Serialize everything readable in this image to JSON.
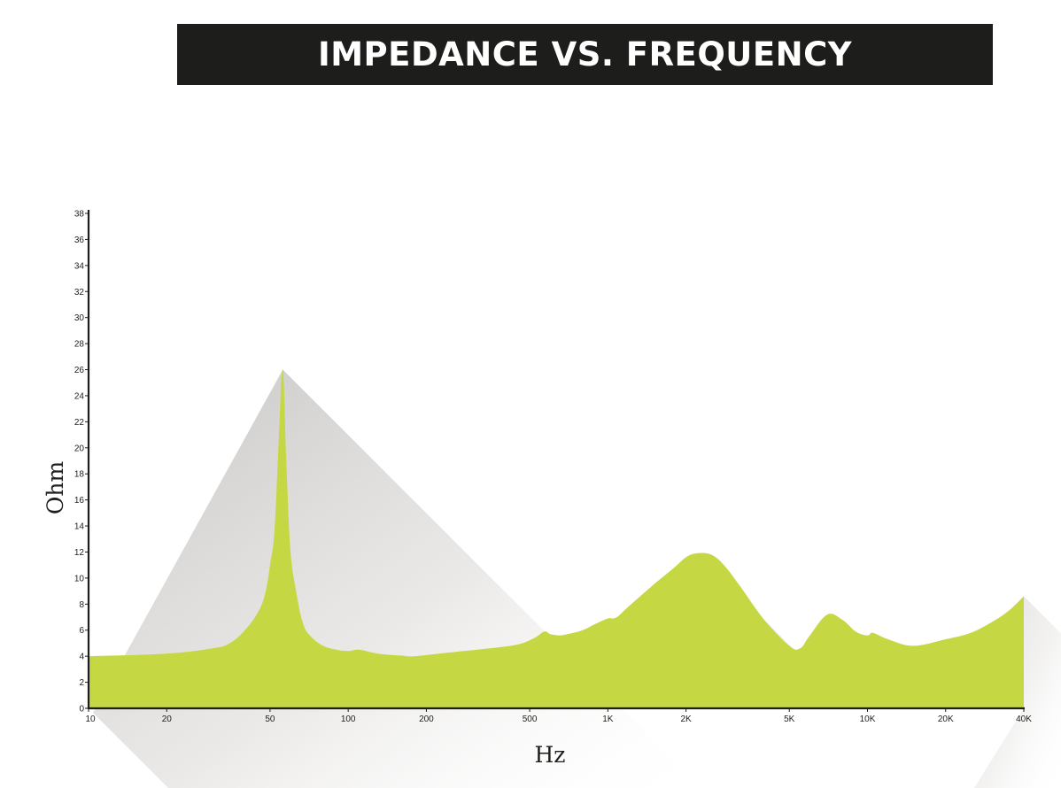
{
  "chart_data": {
    "type": "area",
    "title": "IMPEDANCE VS. FREQUENCY",
    "xlabel": "Hz",
    "ylabel": "Ohm",
    "x_scale": "log",
    "xlim": [
      10,
      40000
    ],
    "ylim": [
      0,
      38
    ],
    "x_ticks": [
      10,
      20,
      50,
      100,
      200,
      500,
      1000,
      2000,
      5000,
      10000,
      20000,
      40000
    ],
    "x_tick_labels": [
      "10",
      "20",
      "50",
      "100",
      "200",
      "500",
      "1K",
      "2K",
      "5K",
      "10K",
      "20K",
      "40K"
    ],
    "y_ticks": [
      0,
      2,
      4,
      6,
      8,
      10,
      12,
      14,
      16,
      18,
      20,
      22,
      24,
      26,
      28,
      30,
      32,
      34,
      36,
      38
    ],
    "grid": false,
    "colors": {
      "fill": "#c5d844",
      "axis": "#1d1d1b",
      "shadow": "#c8c6c4"
    },
    "series": [
      {
        "x": [
          10,
          20,
          30,
          35,
          40,
          45,
          48,
          50,
          52,
          54,
          56,
          58,
          60,
          63,
          67,
          72,
          80,
          90,
          100,
          110,
          130,
          160,
          180,
          250,
          350,
          450,
          520,
          570,
          600,
          650,
          700,
          800,
          900,
          1000,
          1050,
          1100,
          1200,
          1500,
          1800,
          2000,
          2200,
          2500,
          2800,
          3200,
          4000,
          5000,
          5500,
          6000,
          7000,
          8000,
          9000,
          10000,
          10500,
          12000,
          15000,
          20000,
          25000,
          30000,
          35000,
          40000
        ],
        "y": [
          4.0,
          4.2,
          4.6,
          5.0,
          6.0,
          7.4,
          8.9,
          11.0,
          13.6,
          20.5,
          26.0,
          18.0,
          12.0,
          9.0,
          6.5,
          5.5,
          4.8,
          4.5,
          4.4,
          4.5,
          4.2,
          4.05,
          4.0,
          4.3,
          4.6,
          4.9,
          5.4,
          5.9,
          5.7,
          5.6,
          5.7,
          6.0,
          6.5,
          6.9,
          6.9,
          7.1,
          7.8,
          9.5,
          10.8,
          11.6,
          11.9,
          11.8,
          11.0,
          9.5,
          6.8,
          4.8,
          4.6,
          5.6,
          7.2,
          6.8,
          5.9,
          5.6,
          5.8,
          5.3,
          4.8,
          5.3,
          5.8,
          6.6,
          7.5,
          8.6
        ]
      }
    ]
  }
}
